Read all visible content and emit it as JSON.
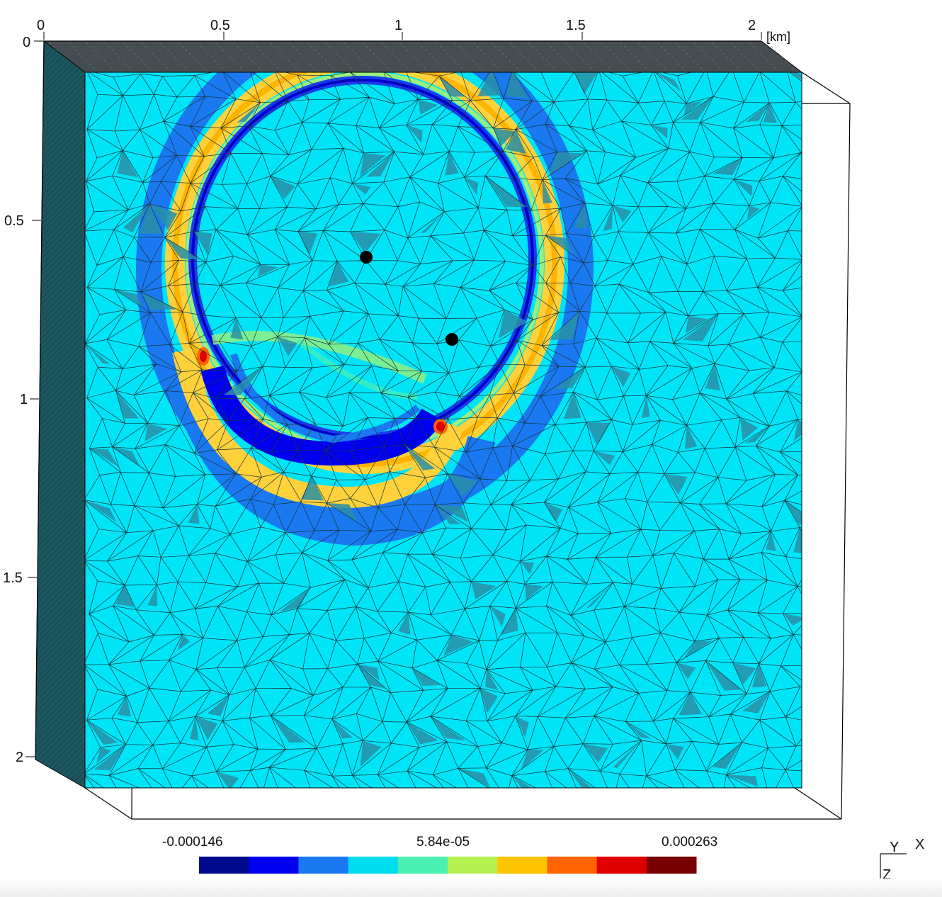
{
  "top_axis": {
    "ticks": [
      "0",
      "0.5",
      "1",
      "1.5",
      "2"
    ],
    "unit": "[km]"
  },
  "left_axis": {
    "ticks": [
      "0",
      "0.5",
      "1",
      "1.5",
      "2"
    ]
  },
  "colorbar": {
    "labels": [
      "-0.000146",
      "5.84e-05",
      "0.000263"
    ],
    "colors": [
      "#000a8c",
      "#0000ee",
      "#1a78f0",
      "#00dcf0",
      "#4cf0b0",
      "#b4f050",
      "#ffc400",
      "#ff6400",
      "#e00000",
      "#780000"
    ]
  },
  "orientation": {
    "y_label": "Y",
    "x_label": "X",
    "z_label": "Z"
  },
  "colors": {
    "background_field": "#00e4f8",
    "mesh_line": "#1b3a40",
    "top_face": "#444d50",
    "side_face": "#1d5560",
    "source_marker": "#000000"
  }
}
